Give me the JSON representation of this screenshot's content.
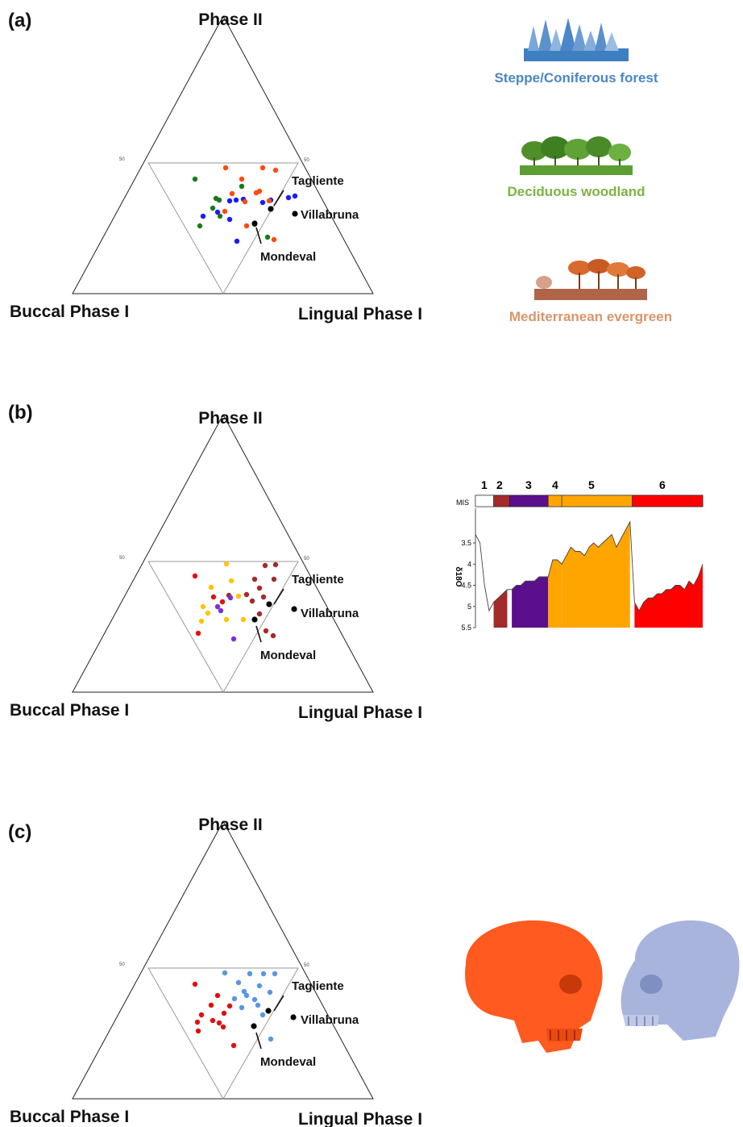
{
  "panels": [
    {
      "label": "(a)",
      "corners": {
        "top": "Phase II",
        "left": "Buccal Phase I",
        "right": "Lingual Phase I"
      },
      "tick_left": "50",
      "tick_right": "50",
      "sites": {
        "tagliente": "Tagliente",
        "villabruna": "Villabruna",
        "mondeval": "Mondeval"
      },
      "legend": [
        {
          "label": "Steppe/Coniferous forest",
          "color": "#4a86c8"
        },
        {
          "label": "Deciduous woodland",
          "color": "#7cb342"
        },
        {
          "label": "Mediterranean evergreen",
          "color": "#d9956a"
        }
      ]
    },
    {
      "label": "(b)",
      "corners": {
        "top": "Phase II",
        "left": "Buccal Phase I",
        "right": "Lingual Phase I"
      },
      "tick_left": "50",
      "tick_right": "50",
      "sites": {
        "tagliente": "Tagliente",
        "villabruna": "Villabruna",
        "mondeval": "Mondeval"
      },
      "mis": {
        "axis_title": "δ18O",
        "band_label": "MIS",
        "stages": [
          {
            "label": "1",
            "color": "#ffffff"
          },
          {
            "label": "2",
            "color": "#a52a2a"
          },
          {
            "label": "3",
            "color": "#5b0f8c"
          },
          {
            "label": "4",
            "color": "#ffa500"
          },
          {
            "label": "5",
            "color": "#ffa500"
          },
          {
            "label": "6",
            "color": "#ff0000"
          }
        ],
        "y_ticks": [
          "3.5",
          "4",
          "4.5",
          "5",
          "5.5"
        ]
      }
    },
    {
      "label": "(c)",
      "corners": {
        "top": "Phase II",
        "left": "Buccal Phase I",
        "right": "Lingual Phase I"
      },
      "tick_left": "50",
      "tick_right": "50",
      "sites": {
        "tagliente": "Tagliente",
        "villabruna": "Villabruna",
        "mondeval": "Mondeval"
      },
      "skulls": [
        {
          "name": "neanderthal-skull",
          "color": "#ff5a1f"
        },
        {
          "name": "modern-human-skull",
          "color": "#a8b4dc"
        }
      ]
    }
  ],
  "chart_data": [
    {
      "type": "scatter",
      "subtype": "ternary",
      "title": "",
      "axes": [
        "Phase II",
        "Buccal Phase I",
        "Lingual Phase I"
      ],
      "series": [
        {
          "name": "Steppe/Coniferous forest",
          "color": "#1a1aff",
          "points": [
            [
              285,
              249
            ],
            [
              302,
              247
            ],
            [
              358,
              245
            ],
            [
              366,
              243
            ],
            [
              270,
              263
            ],
            [
              252,
              268
            ],
            [
              294,
              299
            ],
            [
              285,
              272
            ],
            [
              293,
              248
            ],
            [
              336,
              248
            ],
            [
              326,
              251
            ]
          ]
        },
        {
          "name": "Deciduous woodland",
          "color": "#1a7a1a",
          "points": [
            [
              242,
              222
            ],
            [
              268,
              246
            ],
            [
              264,
              258
            ],
            [
              248,
              280
            ],
            [
              273,
              268
            ],
            [
              316,
              278
            ],
            [
              300,
              231
            ],
            [
              332,
              294
            ],
            [
              272,
              248
            ]
          ]
        },
        {
          "name": "Mediterranean evergreen",
          "color": "#ff4a0f",
          "points": [
            [
              280,
              208
            ],
            [
              326,
              208
            ],
            [
              342,
              211
            ],
            [
              300,
              222
            ],
            [
              288,
              240
            ],
            [
              322,
              237
            ],
            [
              334,
              249
            ],
            [
              304,
              250
            ],
            [
              318,
              239
            ],
            [
              306,
              280
            ],
            [
              340,
              297
            ],
            [
              279,
              262
            ]
          ]
        },
        {
          "name": "",
          "color": "#000000",
          "points": [
            [
              336,
              259
            ],
            [
              316,
              277
            ],
            [
              366,
              265
            ]
          ]
        }
      ]
    },
    {
      "type": "scatter",
      "subtype": "ternary",
      "title": "",
      "axes": [
        "Phase II",
        "Buccal Phase I",
        "Lingual Phase I"
      ],
      "series": [
        {
          "name": "2",
          "color": "#a52a2a",
          "points": [
            [
              329,
              701
            ],
            [
              342,
              700
            ],
            [
              316,
              718
            ],
            [
              340,
              718
            ],
            [
              322,
              729
            ],
            [
              306,
              737
            ],
            [
              313,
              745
            ],
            [
              284,
              738
            ],
            [
              327,
              740
            ],
            [
              330,
              782
            ],
            [
              339,
              788
            ],
            [
              322,
              761
            ]
          ]
        },
        {
          "name": "3",
          "color": "#7b2fd6",
          "points": [
            [
              286,
              741
            ],
            [
              270,
              752
            ],
            [
              274,
              757
            ],
            [
              290,
              792
            ]
          ]
        },
        {
          "name": "4-5",
          "color": "#ffc400",
          "points": [
            [
              281,
              699
            ],
            [
              287,
              720
            ],
            [
              262,
              728
            ],
            [
              252,
              752
            ],
            [
              258,
              760
            ],
            [
              281,
              768
            ],
            [
              250,
              770
            ],
            [
              302,
              768
            ],
            [
              296,
              739
            ]
          ]
        },
        {
          "name": "6",
          "color": "#e01010",
          "points": [
            [
              242,
              714
            ],
            [
              265,
              740
            ],
            [
              276,
              746
            ],
            [
              246,
              785
            ]
          ]
        },
        {
          "name": "",
          "color": "#000000",
          "points": [
            [
              334,
              749
            ],
            [
              316,
              768
            ],
            [
              365,
              755
            ]
          ]
        }
      ]
    },
    {
      "type": "scatter",
      "subtype": "ternary",
      "title": "",
      "axes": [
        "Phase II",
        "Buccal Phase I",
        "Lingual Phase I"
      ],
      "series": [
        {
          "name": "Neanderthal",
          "color": "#e01010",
          "points": [
            [
              242,
              1220
            ],
            [
              270,
              1234
            ],
            [
              262,
              1246
            ],
            [
              285,
              1247
            ],
            [
              278,
              1256
            ],
            [
              250,
              1258
            ],
            [
              264,
              1265
            ],
            [
              245,
              1267
            ],
            [
              272,
              1268
            ],
            [
              277,
              1273
            ],
            [
              246,
              1278
            ],
            [
              290,
              1296
            ]
          ]
        },
        {
          "name": "Modern human",
          "color": "#5a96e0",
          "points": [
            [
              279,
              1206
            ],
            [
              310,
              1207
            ],
            [
              327,
              1207
            ],
            [
              341,
              1207
            ],
            [
              296,
              1218
            ],
            [
              322,
              1222
            ],
            [
              303,
              1229
            ],
            [
              335,
              1230
            ],
            [
              306,
              1234
            ],
            [
              291,
              1238
            ],
            [
              316,
              1239
            ],
            [
              320,
              1246
            ],
            [
              300,
              1249
            ],
            [
              336,
              1288
            ],
            [
              326,
              1258
            ]
          ]
        },
        {
          "name": "",
          "color": "#000000",
          "points": [
            [
              333,
              1253
            ],
            [
              315,
              1272
            ],
            [
              364,
              1261
            ]
          ]
        }
      ]
    },
    {
      "type": "area",
      "title": "",
      "xlabel": "",
      "ylabel": "δ18O",
      "ylim": [
        3.1,
        5.5
      ],
      "y_inverted": true,
      "stages": [
        "1",
        "2",
        "3",
        "4",
        "5",
        "6"
      ],
      "x": [
        0,
        2,
        4,
        6,
        8,
        10,
        12,
        14,
        16,
        18,
        20,
        22,
        24,
        26,
        28,
        30,
        32,
        34,
        36,
        38,
        40,
        42,
        44,
        46,
        48,
        50,
        52,
        54,
        56,
        58,
        60,
        62,
        64,
        66,
        68,
        70,
        72,
        74,
        76,
        78,
        80,
        82,
        84,
        86,
        88,
        90,
        92,
        94,
        96,
        98,
        100
      ],
      "values": [
        3.3,
        3.5,
        4.5,
        5.1,
        4.9,
        4.8,
        4.7,
        4.6,
        4.6,
        4.5,
        4.5,
        4.4,
        4.4,
        4.4,
        4.3,
        4.3,
        4.3,
        3.9,
        3.9,
        4.0,
        3.8,
        3.6,
        3.7,
        3.7,
        3.8,
        3.6,
        3.5,
        3.6,
        3.5,
        3.4,
        3.3,
        3.6,
        3.4,
        3.2,
        3.0,
        4.9,
        5.1,
        4.9,
        4.8,
        4.8,
        4.7,
        4.7,
        4.6,
        4.6,
        4.5,
        4.5,
        4.6,
        4.4,
        4.5,
        4.3,
        4.0
      ]
    }
  ]
}
